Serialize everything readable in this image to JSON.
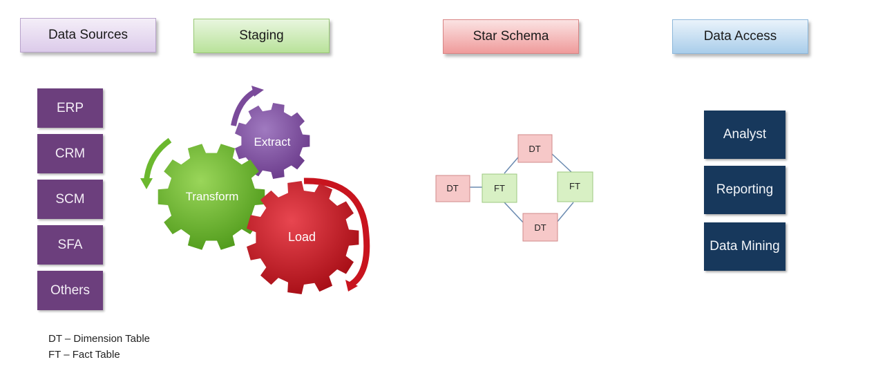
{
  "headers": {
    "data_sources": "Data Sources",
    "staging": "Staging",
    "star_schema": "Star Schema",
    "data_access": "Data Access"
  },
  "data_sources": [
    "ERP",
    "CRM",
    "SCM",
    "SFA",
    "Others"
  ],
  "staging": {
    "extract": "Extract",
    "transform": "Transform",
    "load": "Load"
  },
  "star_schema": {
    "dt_top": "DT",
    "dt_left": "DT",
    "dt_bottom": "DT",
    "ft_left": "FT",
    "ft_right": "FT"
  },
  "data_access": [
    "Analyst",
    "Reporting",
    "Data Mining"
  ],
  "legend": {
    "dt": "DT – Dimension Table",
    "ft": "FT – Fact Table"
  },
  "colors": {
    "data_sources_box": "#6c3f7d",
    "data_access_box": "#17385c",
    "extract_gear": "#7a4a9a",
    "transform_gear": "#6bb82e",
    "load_gear": "#c8141e",
    "dt_box": "#f6c8c8",
    "ft_box": "#d8f0c4"
  }
}
